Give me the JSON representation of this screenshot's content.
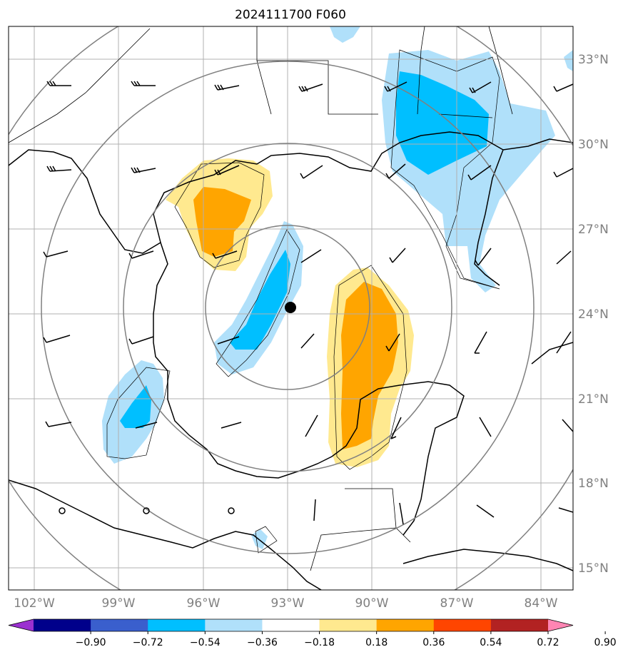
{
  "title": "2024111700 F060",
  "lat_labels": [
    "33°N",
    "30°N",
    "27°N",
    "24°N",
    "21°N",
    "18°N",
    "15°N"
  ],
  "lon_labels": [
    "102°W",
    "99°W",
    "96°W",
    "93°W",
    "90°W",
    "87°W",
    "84°W"
  ],
  "colorbar": {
    "ticks": [
      "−0.90",
      "−0.72",
      "−0.54",
      "−0.36",
      "−0.18",
      "0.18",
      "0.36",
      "0.54",
      "0.72",
      "0.90"
    ],
    "colors": [
      "#9b30d0",
      "#00008b",
      "#3a5fcd",
      "#00bfff",
      "#b0e0fa",
      "#ffffff",
      "#ffe98f",
      "#ffa500",
      "#ff4500",
      "#b22222",
      "#ff85b3"
    ]
  },
  "storm_center": {
    "lat": 24.2,
    "lon": -92.7
  },
  "range_rings": "concentric circles around storm center",
  "colors": {
    "land_outline": "#000000",
    "grid": "#b0b0b0",
    "ring": "#808080",
    "neg_light": "#b0e0fa",
    "neg_mid": "#00bfff",
    "pos_light": "#ffe98f",
    "pos_mid": "#ffa500"
  }
}
